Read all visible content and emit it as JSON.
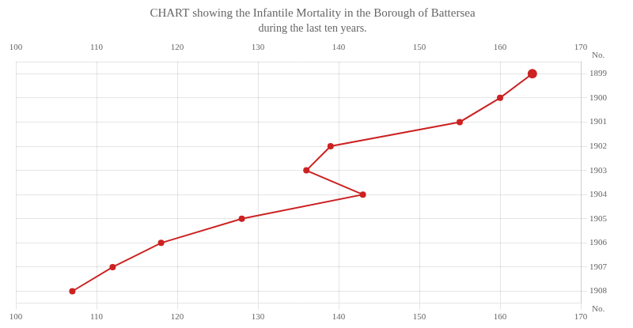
{
  "chart_data": {
    "type": "line",
    "title": "CHART showing the Infantile Mortality in the Borough of Battersea",
    "subtitle": "during the last ten years.",
    "orientation": "horizontal",
    "categories": [
      "1899",
      "1900",
      "1901",
      "1902",
      "1903",
      "1904",
      "1905",
      "1906",
      "1907",
      "1908"
    ],
    "values": [
      164,
      160,
      155,
      139,
      136,
      143,
      128,
      118,
      112,
      107
    ],
    "color": "#cc2222",
    "marker": "circle",
    "xlim": [
      100,
      170
    ],
    "xticks": [
      100,
      110,
      120,
      130,
      140,
      150,
      160,
      170
    ],
    "grid": true,
    "annotations": [
      "No.",
      "No."
    ]
  }
}
